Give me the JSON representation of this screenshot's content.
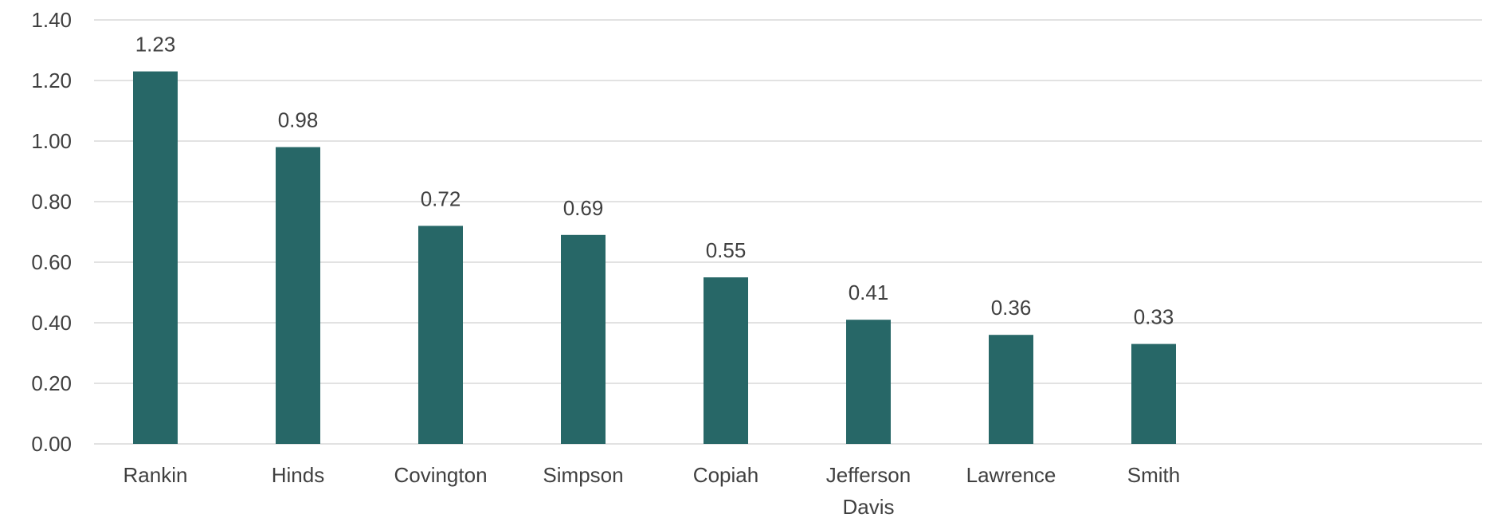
{
  "chart_data": {
    "type": "bar",
    "title": "",
    "xlabel": "",
    "ylabel": "",
    "categories": [
      [
        "Rankin"
      ],
      [
        "Hinds"
      ],
      [
        "Covington"
      ],
      [
        "Simpson"
      ],
      [
        "Copiah"
      ],
      [
        "Jefferson",
        "Davis"
      ],
      [
        "Lawrence"
      ],
      [
        "Smith"
      ]
    ],
    "values": [
      1.23,
      0.98,
      0.72,
      0.69,
      0.55,
      0.41,
      0.36,
      0.33
    ],
    "data_labels": [
      "1.23",
      "0.98",
      "0.72",
      "0.69",
      "0.55",
      "0.41",
      "0.36",
      "0.33"
    ],
    "ylim": [
      0,
      1.4
    ],
    "yticks": [
      "0.00",
      "0.20",
      "0.40",
      "0.60",
      "0.80",
      "1.00",
      "1.20",
      "1.40"
    ],
    "ytick_values": [
      0,
      0.2,
      0.4,
      0.6,
      0.8,
      1.0,
      1.2,
      1.4
    ],
    "grid": true,
    "legend": "none",
    "colors": {
      "bar": "#276767",
      "grid": "#d9d9d9",
      "text": "#404040"
    }
  }
}
